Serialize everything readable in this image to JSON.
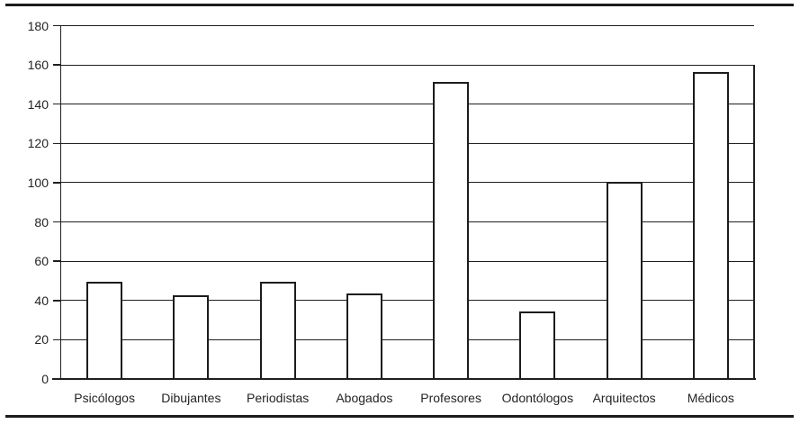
{
  "chart_data": {
    "type": "bar",
    "categories": [
      "Psicólogos",
      "Dibujantes",
      "Periodistas",
      "Abogados",
      "Profesores",
      "Odontólogos",
      "Arquitectos",
      "Médicos"
    ],
    "values": [
      49,
      42,
      49,
      43,
      151,
      34,
      100,
      156
    ],
    "title": "",
    "xlabel": "",
    "ylabel": "",
    "ylim": [
      0,
      180
    ],
    "ytick_step": 20,
    "ytick_labels": [
      "0",
      "20",
      "40",
      "60",
      "80",
      "100",
      "120",
      "140",
      "160",
      "180"
    ],
    "grid": true,
    "legend": "none",
    "right_border_from": 160,
    "bar_fill": "#ffffff",
    "bar_border": "#1c1c1c",
    "line_color": "#1f1f1f",
    "text_color": "#242424"
  },
  "frame": {
    "rule_color": "#1c1c1c"
  }
}
